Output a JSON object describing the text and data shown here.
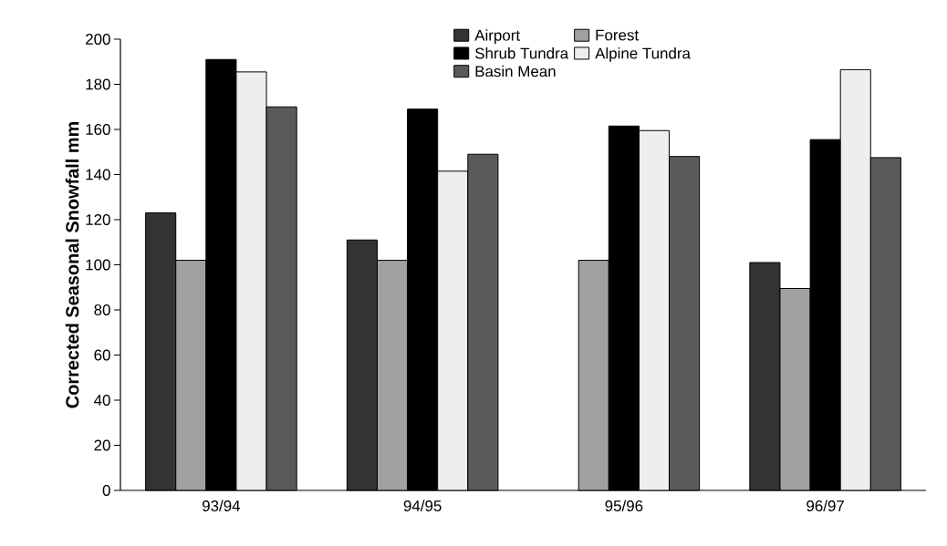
{
  "chart_data": {
    "type": "bar",
    "ylabel": "Corrected Seasonal Snowfall mm",
    "categories": [
      "93/94",
      "94/95",
      "95/96",
      "96/97"
    ],
    "series": [
      {
        "name": "Airport",
        "color": "#333333",
        "values": [
          123,
          111,
          null,
          101
        ]
      },
      {
        "name": "Forest",
        "color": "#a0a0a0",
        "values": [
          102,
          102,
          102,
          89.5
        ]
      },
      {
        "name": "Shrub Tundra",
        "color": "#000000",
        "values": [
          191,
          169,
          161.5,
          155.5
        ]
      },
      {
        "name": "Alpine Tundra",
        "color": "#eeeeee",
        "values": [
          185.5,
          141.5,
          159.5,
          186.5
        ]
      },
      {
        "name": "Basin Mean",
        "color": "#5a5a5a",
        "values": [
          170,
          149,
          148,
          147.5
        ]
      }
    ],
    "ylim": [
      0,
      200
    ],
    "yticks": [
      0,
      20,
      40,
      60,
      80,
      100,
      120,
      140,
      160,
      180,
      200
    ],
    "grid": false,
    "legend": "top right"
  }
}
